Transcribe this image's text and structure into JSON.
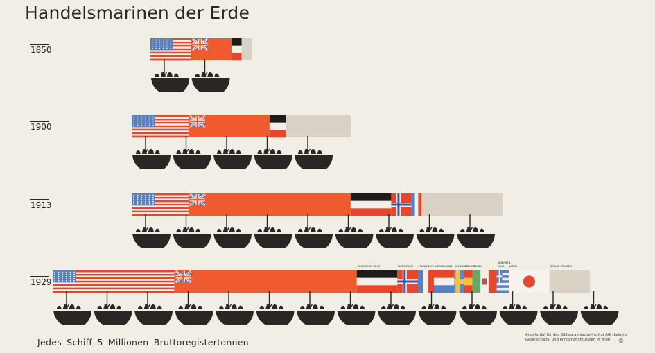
{
  "title": "Handelsmarinen der Erde",
  "footer": {
    "legend": "Jedes Schiff  5 Millionen  Bruttoregistertonnen",
    "credit_line1": "Angefertigt für das Bibliographische Institut AG., Leipzig",
    "credit_line2": "Gesellschafts- und Wirtschaftsmuseum in Wien",
    "copyright": "©"
  },
  "colors": {
    "background": "#f1eee6",
    "ship": "#2a2624",
    "britain": "#ef5a2f",
    "usa_red": "#e8452d",
    "usa_blue": "#5a7fc0",
    "other": "#d9d1c3"
  },
  "chart_data": {
    "type": "bar",
    "title": "Handelsmarinen der Erde",
    "unit": "Jedes Schiff 5 Millionen Bruttoregistertonnen",
    "ship_value": 5,
    "categories": [
      "1850",
      "1900",
      "1913",
      "1929"
    ],
    "series": [
      {
        "country": "usa",
        "values": [
          1.0,
          1.4,
          1.4,
          3.0
        ]
      },
      {
        "country": "britain",
        "values": [
          1.0,
          2.0,
          4.0,
          4.5
        ]
      },
      {
        "country": "germany",
        "values": [
          0.25,
          0.4,
          1.0,
          1.0
        ]
      },
      {
        "country": "norway",
        "values": [
          0,
          0,
          0.5,
          0.5
        ]
      },
      {
        "country": "france",
        "values": [
          0,
          0,
          0.25,
          0.4
        ]
      },
      {
        "country": "netherlands",
        "values": [
          0,
          0,
          0,
          0.5
        ]
      },
      {
        "country": "sweden",
        "values": [
          0,
          0,
          0,
          0.25
        ]
      },
      {
        "country": "spain",
        "values": [
          0,
          0,
          0,
          0.2
        ]
      },
      {
        "country": "italy",
        "values": [
          0,
          0,
          0,
          0.6
        ]
      },
      {
        "country": "greece",
        "values": [
          0,
          0,
          0,
          0.3
        ]
      },
      {
        "country": "japan",
        "values": [
          0,
          0,
          0,
          1.0
        ]
      },
      {
        "country": "other",
        "values": [
          0.25,
          1.6,
          2.0,
          1.0
        ]
      }
    ],
    "ships_per_row": [
      2,
      5,
      9,
      14
    ],
    "label_1929": {
      "netherlands": "NIEDERLANDE",
      "germany": "DEUTSCHES REICH",
      "norway": "NORWEGEN",
      "sweden": "SCHWEDEN",
      "france": "FRANKREICH",
      "spain": "SPANIEN",
      "italy": "ITALIEN",
      "greece": "GRIECHEN-\nLAND",
      "other": "ÜBRIGE STAATEN",
      "japan": "JAPAN"
    }
  }
}
